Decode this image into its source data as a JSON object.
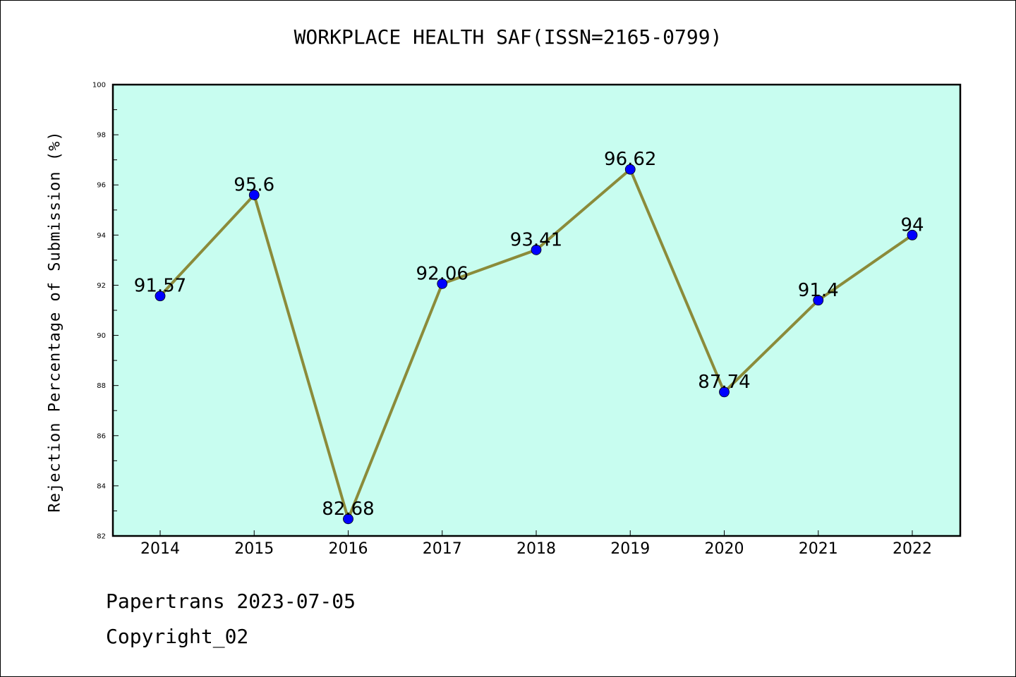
{
  "chart_data": {
    "type": "line",
    "title": "WORKPLACE HEALTH SAF(ISSN=2165-0799)",
    "xlabel": "",
    "ylabel": "Rejection Percentage of Submission (%)",
    "categories": [
      "2014",
      "2015",
      "2016",
      "2017",
      "2018",
      "2019",
      "2020",
      "2021",
      "2022"
    ],
    "series": [
      {
        "values": [
          91.57,
          95.6,
          82.68,
          92.06,
          93.41,
          96.62,
          87.74,
          91.4,
          94
        ],
        "labels": [
          "91.57",
          "95.6",
          "82.68",
          "92.06",
          "93.41",
          "96.62",
          "87.74",
          "91.4",
          "94"
        ]
      }
    ],
    "ylim": [
      82,
      100
    ],
    "yticks": [
      "82",
      "84",
      "86",
      "88",
      "90",
      "92",
      "94",
      "96",
      "98",
      "100"
    ],
    "grid": false,
    "legend": "none"
  },
  "colors": {
    "plot_background": "#c8fdf0",
    "line": "#8b8b3a",
    "marker": "#0000ff"
  },
  "footer": {
    "line1": "Papertrans 2023-07-05",
    "line2": "Copyright_02"
  }
}
